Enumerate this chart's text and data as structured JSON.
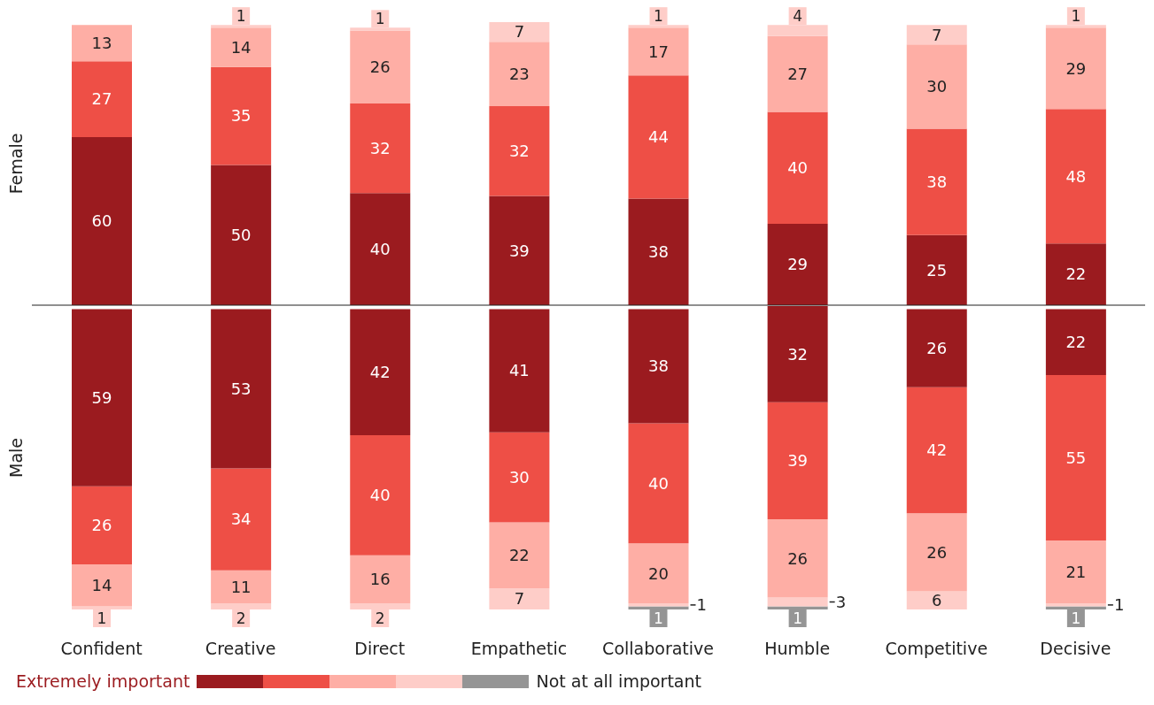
{
  "chart_data": [
    {
      "type": "bar",
      "stacked": true,
      "ylabel": "Female",
      "categories": [
        null,
        null,
        null,
        null,
        null,
        null,
        null,
        null
      ],
      "ylim": [
        0,
        101
      ],
      "tick_labels": false,
      "data_labels": true,
      "legend": false,
      "series": [
        {
          "color": "#9b1b1f",
          "values": [
            60,
            50,
            40,
            39,
            38,
            29,
            25,
            22
          ]
        },
        {
          "color": "#ee4f46",
          "values": [
            27,
            35,
            32,
            32,
            44,
            40,
            38,
            48
          ]
        },
        {
          "color": "#feaea5",
          "values": [
            13,
            14,
            26,
            23,
            17,
            27,
            30,
            29
          ]
        },
        {
          "color": "#fecdc8",
          "values": [
            null,
            1,
            1,
            7,
            1,
            4,
            7,
            1
          ]
        }
      ]
    },
    {
      "type": "bar",
      "stacked": true,
      "ylabel": "Male",
      "categories": [
        "Confident",
        "Creative",
        "Direct",
        "Empathetic",
        "Collaborative",
        "Humble",
        "Competitive",
        "Decisive"
      ],
      "ylim": [
        0,
        101
      ],
      "tick_labels": "x",
      "data_labels": true,
      "legend": "bottom",
      "series": [
        {
          "name": "Not at all important",
          "color": "#959595",
          "values": [
            null,
            null,
            null,
            null,
            1,
            1,
            null,
            1
          ]
        },
        {
          "color": "#fecdc8",
          "values": [
            1,
            2,
            2,
            7,
            1,
            3,
            6,
            1
          ]
        },
        {
          "color": "#feaea5",
          "values": [
            14,
            11,
            16,
            22,
            20,
            26,
            26,
            21
          ]
        },
        {
          "color": "#ee4f46",
          "values": [
            26,
            34,
            40,
            30,
            40,
            39,
            42,
            55
          ]
        },
        {
          "name": "Extremely important",
          "color": "#9b1b1f",
          "values": [
            59,
            53,
            42,
            41,
            38,
            32,
            26,
            22
          ]
        }
      ]
    }
  ]
}
